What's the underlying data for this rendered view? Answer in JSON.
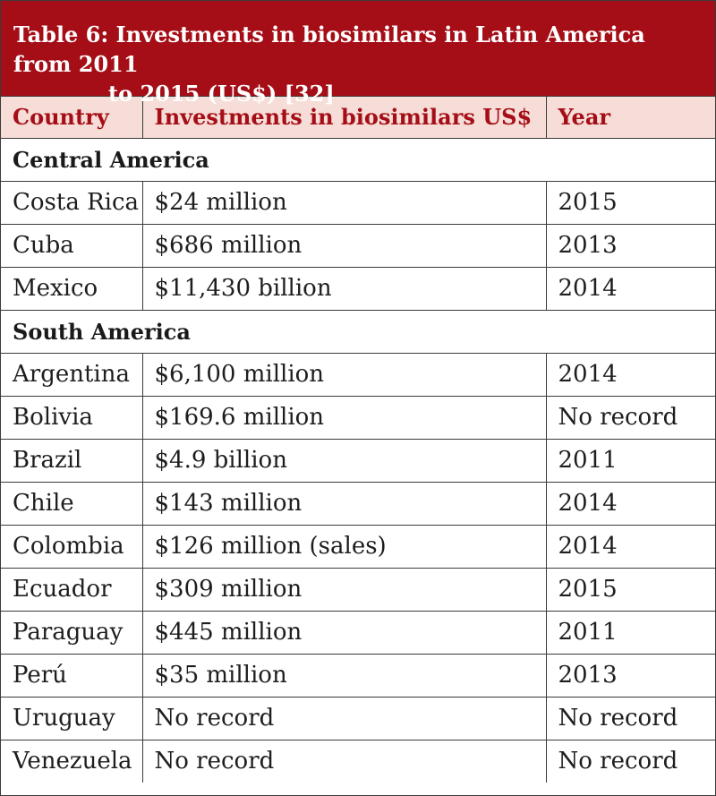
{
  "title": {
    "line1": "Table 6: Investments in biosimilars in Latin America from 2011",
    "line2": "to 2015 (US$) [32]"
  },
  "columns": [
    "Country",
    "Investments in biosimilars US$",
    "Year"
  ],
  "groups": [
    {
      "name": "Central America",
      "rows": [
        {
          "country": "Costa Rica",
          "investment": "$24 million",
          "year": "2015"
        },
        {
          "country": "Cuba",
          "investment": "$686 million",
          "year": "2013"
        },
        {
          "country": "Mexico",
          "investment": "$11,430 billion",
          "year": "2014"
        }
      ]
    },
    {
      "name": "South America",
      "rows": [
        {
          "country": "Argentina",
          "investment": "$6,100 million",
          "year": "2014"
        },
        {
          "country": "Bolivia",
          "investment": "$169.6 million",
          "year": "No record"
        },
        {
          "country": "Brazil",
          "investment": "$4.9 billion",
          "year": "2011"
        },
        {
          "country": "Chile",
          "investment": "$143 million",
          "year": "2014"
        },
        {
          "country": "Colombia",
          "investment": "$126 million (sales)",
          "year": "2014"
        },
        {
          "country": "Ecuador",
          "investment": "$309 million",
          "year": "2015"
        },
        {
          "country": "Paraguay",
          "investment": "$445 million",
          "year": "2011"
        },
        {
          "country": "Perú",
          "investment": "$35 million",
          "year": "2013"
        },
        {
          "country": "Uruguay",
          "investment": "No record",
          "year": "No record"
        },
        {
          "country": "Venezuela",
          "investment": "No record",
          "year": "No record"
        }
      ]
    }
  ],
  "colors": {
    "title_bg": "#a50e17",
    "header_bg": "#f6ddd7",
    "header_text": "#a50e17"
  }
}
